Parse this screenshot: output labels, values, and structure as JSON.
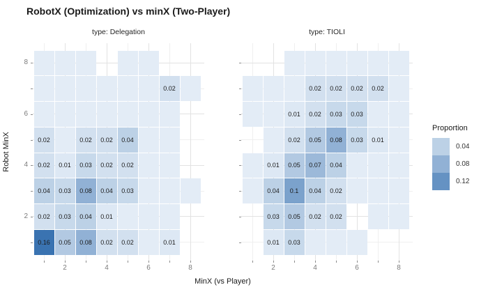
{
  "chart_data": {
    "type": "heatmap",
    "title": "RobotX (Optimization) vs minX (Two-Player)",
    "xlabel": "MinX (vs Player)",
    "ylabel": "Robot MinX",
    "x_range": [
      1,
      8
    ],
    "y_range": [
      1,
      8
    ],
    "ticks": [
      1,
      2,
      3,
      4,
      5,
      6,
      7,
      8
    ],
    "labeled_ticks": [
      2,
      4,
      6,
      8
    ],
    "grid": true,
    "color_scale": {
      "low": "#e8f0f8",
      "high": "#2f6bad",
      "domain": [
        0,
        0.17
      ]
    },
    "unlabeled_value": 0.005,
    "legend": {
      "title": "Proportion",
      "position": "right",
      "entries": [
        {
          "label": "0.04",
          "value": 0.04
        },
        {
          "label": "0.08",
          "value": 0.08
        },
        {
          "label": "0.12",
          "value": 0.12
        }
      ]
    },
    "facets": [
      {
        "label": "type: Delegation",
        "cells": [
          [
            1,
            8,
            ""
          ],
          [
            2,
            8,
            ""
          ],
          [
            3,
            8,
            ""
          ],
          [
            5,
            8,
            ""
          ],
          [
            6,
            8,
            ""
          ],
          [
            1,
            7,
            ""
          ],
          [
            2,
            7,
            ""
          ],
          [
            3,
            7,
            ""
          ],
          [
            4,
            7,
            ""
          ],
          [
            5,
            7,
            ""
          ],
          [
            6,
            7,
            ""
          ],
          [
            7,
            7,
            "0.02"
          ],
          [
            8,
            7,
            ""
          ],
          [
            1,
            6,
            ""
          ],
          [
            2,
            6,
            ""
          ],
          [
            3,
            6,
            ""
          ],
          [
            4,
            6,
            ""
          ],
          [
            5,
            6,
            ""
          ],
          [
            6,
            6,
            ""
          ],
          [
            7,
            6,
            ""
          ],
          [
            1,
            5,
            "0.02"
          ],
          [
            2,
            5,
            ""
          ],
          [
            3,
            5,
            "0.02"
          ],
          [
            4,
            5,
            "0.02"
          ],
          [
            5,
            5,
            "0.04"
          ],
          [
            6,
            5,
            ""
          ],
          [
            7,
            5,
            ""
          ],
          [
            1,
            4,
            "0.02"
          ],
          [
            2,
            4,
            "0.01"
          ],
          [
            3,
            4,
            "0.03"
          ],
          [
            4,
            4,
            "0.02"
          ],
          [
            5,
            4,
            "0.02"
          ],
          [
            6,
            4,
            ""
          ],
          [
            7,
            4,
            ""
          ],
          [
            1,
            3,
            "0.04"
          ],
          [
            2,
            3,
            "0.03"
          ],
          [
            3,
            3,
            "0.08"
          ],
          [
            4,
            3,
            "0.04"
          ],
          [
            5,
            3,
            "0.03"
          ],
          [
            6,
            3,
            ""
          ],
          [
            7,
            3,
            ""
          ],
          [
            8,
            3,
            ""
          ],
          [
            1,
            2,
            "0.02"
          ],
          [
            2,
            2,
            "0.03"
          ],
          [
            3,
            2,
            "0.04"
          ],
          [
            4,
            2,
            "0.01"
          ],
          [
            5,
            2,
            ""
          ],
          [
            6,
            2,
            ""
          ],
          [
            7,
            2,
            ""
          ],
          [
            1,
            1,
            "0.16"
          ],
          [
            2,
            1,
            "0.05"
          ],
          [
            3,
            1,
            "0.08"
          ],
          [
            4,
            1,
            "0.02"
          ],
          [
            5,
            1,
            "0.02"
          ],
          [
            6,
            1,
            ""
          ],
          [
            7,
            1,
            "0.01"
          ]
        ]
      },
      {
        "label": "type: TIOLI",
        "cells": [
          [
            3,
            8,
            ""
          ],
          [
            4,
            8,
            ""
          ],
          [
            5,
            8,
            ""
          ],
          [
            6,
            8,
            ""
          ],
          [
            7,
            8,
            ""
          ],
          [
            8,
            8,
            ""
          ],
          [
            1,
            7,
            ""
          ],
          [
            2,
            7,
            ""
          ],
          [
            3,
            7,
            ""
          ],
          [
            4,
            7,
            "0.02"
          ],
          [
            5,
            7,
            "0.02"
          ],
          [
            6,
            7,
            "0.02"
          ],
          [
            7,
            7,
            "0.02"
          ],
          [
            8,
            7,
            ""
          ],
          [
            1,
            6,
            ""
          ],
          [
            2,
            6,
            ""
          ],
          [
            3,
            6,
            "0.01"
          ],
          [
            4,
            6,
            "0.02"
          ],
          [
            5,
            6,
            "0.03"
          ],
          [
            6,
            6,
            "0.03"
          ],
          [
            7,
            6,
            ""
          ],
          [
            8,
            6,
            ""
          ],
          [
            2,
            5,
            ""
          ],
          [
            3,
            5,
            "0.02"
          ],
          [
            4,
            5,
            "0.05"
          ],
          [
            5,
            5,
            "0.08"
          ],
          [
            6,
            5,
            "0.03"
          ],
          [
            7,
            5,
            "0.01"
          ],
          [
            8,
            5,
            ""
          ],
          [
            1,
            4,
            ""
          ],
          [
            2,
            4,
            "0.01"
          ],
          [
            3,
            4,
            "0.05"
          ],
          [
            4,
            4,
            "0.07"
          ],
          [
            5,
            4,
            "0.04"
          ],
          [
            6,
            4,
            ""
          ],
          [
            7,
            4,
            ""
          ],
          [
            8,
            4,
            ""
          ],
          [
            1,
            3,
            ""
          ],
          [
            2,
            3,
            "0.04"
          ],
          [
            3,
            3,
            "0.1"
          ],
          [
            4,
            3,
            "0.04"
          ],
          [
            5,
            3,
            "0.02"
          ],
          [
            6,
            3,
            ""
          ],
          [
            7,
            3,
            ""
          ],
          [
            8,
            3,
            ""
          ],
          [
            2,
            2,
            "0.03"
          ],
          [
            3,
            2,
            "0.05"
          ],
          [
            4,
            2,
            "0.02"
          ],
          [
            5,
            2,
            "0.02"
          ],
          [
            7,
            2,
            ""
          ],
          [
            8,
            2,
            ""
          ],
          [
            2,
            1,
            "0.01"
          ],
          [
            3,
            1,
            "0.03"
          ],
          [
            4,
            1,
            ""
          ],
          [
            5,
            1,
            ""
          ],
          [
            6,
            1,
            ""
          ]
        ]
      }
    ]
  }
}
